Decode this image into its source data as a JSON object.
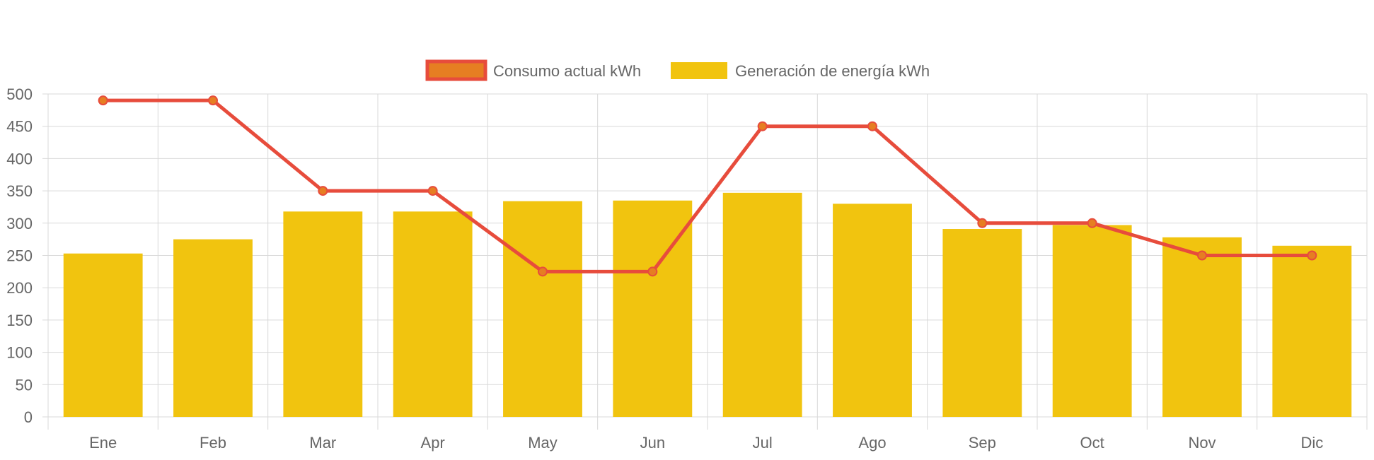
{
  "colors": {
    "bar": "#f1c40f",
    "line": "#e74c3c",
    "point_fill": "#e67e22",
    "grid": "#d9d9d9",
    "text": "#666666"
  },
  "chart_data": {
    "type": "bar",
    "categories": [
      "Ene",
      "Feb",
      "Mar",
      "Apr",
      "May",
      "Jun",
      "Jul",
      "Ago",
      "Sep",
      "Oct",
      "Nov",
      "Dic"
    ],
    "series": [
      {
        "name": "Consumo actual kWh",
        "type": "line",
        "values": [
          490,
          490,
          350,
          350,
          225,
          225,
          450,
          450,
          300,
          300,
          250,
          250
        ]
      },
      {
        "name": "Generación de energía kWh",
        "type": "bar",
        "values": [
          253,
          275,
          318,
          318,
          334,
          335,
          347,
          330,
          291,
          297,
          278,
          265
        ]
      }
    ],
    "ylim": [
      0,
      500
    ],
    "yticks": [
      0,
      50,
      100,
      150,
      200,
      250,
      300,
      350,
      400,
      450,
      500
    ],
    "xlabel": "",
    "ylabel": "",
    "grid": true,
    "legend_position": "top-center"
  }
}
